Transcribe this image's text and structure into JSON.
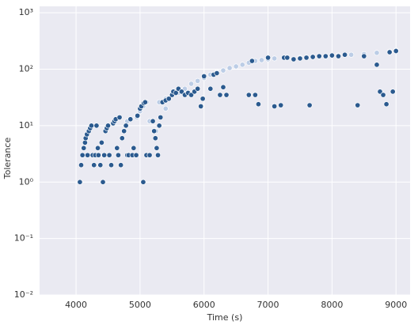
{
  "chart_data": {
    "type": "scatter",
    "x_label": "Time (s)",
    "y_label": "Tolerance",
    "log_y": true,
    "grid": true,
    "xlim": [
      3430,
      9220
    ],
    "ylim": [
      0.01,
      1300
    ],
    "xticks": [
      4000,
      5000,
      6000,
      7000,
      8000,
      9000
    ],
    "yticks": [
      {
        "value": 0.01,
        "label": "10⁻²"
      },
      {
        "value": 0.1,
        "label": "10⁻¹"
      },
      {
        "value": 1,
        "label": "10⁰"
      },
      {
        "value": 10,
        "label": "10¹"
      },
      {
        "value": 100,
        "label": "10²"
      },
      {
        "value": 1000,
        "label": "10³"
      }
    ],
    "series": [
      {
        "color": "#bccde6",
        "x": [
          4800,
          4950,
          5000,
          5050,
          5100,
          5150,
          5250,
          5300,
          5400,
          5400,
          5500,
          5600,
          5700,
          5800,
          5900,
          6000,
          6100,
          6200,
          6300,
          6400,
          6500,
          6600,
          6700,
          6800,
          6900,
          7000,
          7100,
          7300,
          7500,
          7700,
          7900,
          8100,
          8300,
          8500,
          8700,
          8900,
          9000
        ],
        "values": [
          12,
          14,
          18,
          22,
          26,
          12,
          8,
          26,
          20,
          30,
          35,
          38,
          45,
          55,
          62,
          70,
          80,
          88,
          95,
          105,
          112,
          120,
          130,
          140,
          145,
          150,
          155,
          160,
          160,
          165,
          170,
          175,
          180,
          185,
          195,
          205,
          215
        ]
      },
      {
        "color": "#2b5a8f",
        "x": [
          4060,
          4080,
          4100,
          4120,
          4140,
          4150,
          4170,
          4180,
          4200,
          4220,
          4240,
          4260,
          4280,
          4300,
          4320,
          4340,
          4350,
          4380,
          4400,
          4420,
          4440,
          4460,
          4480,
          4500,
          4520,
          4550,
          4580,
          4600,
          4620,
          4640,
          4660,
          4680,
          4700,
          4720,
          4750,
          4780,
          4800,
          4820,
          4850,
          4880,
          4900,
          4940,
          4960,
          5000,
          5020,
          5050,
          5060,
          5080,
          5100,
          5150,
          5200,
          5220,
          5240,
          5260,
          5280,
          5300,
          5320,
          5350,
          5400,
          5450,
          5500,
          5520,
          5560,
          5600,
          5650,
          5700,
          5750,
          5800,
          5850,
          5900,
          5950,
          5980,
          6000,
          6100,
          6150,
          6200,
          6250,
          6300,
          6350,
          6700,
          6750,
          6800,
          6850,
          7000,
          7100,
          7200,
          7250,
          7300,
          7400,
          7500,
          7600,
          7650,
          7700,
          7800,
          7900,
          8000,
          8100,
          8200,
          8400,
          8500,
          8700,
          8750,
          8800,
          8850,
          8900,
          8950,
          9000
        ],
        "values": [
          1,
          2,
          3,
          4,
          5,
          6,
          7,
          3,
          8,
          9,
          10,
          3,
          2,
          3,
          10,
          4,
          3,
          2,
          5,
          1,
          3,
          8,
          9,
          10,
          3,
          2,
          11,
          12,
          13,
          4,
          3,
          14,
          2,
          6,
          8,
          10,
          3,
          3,
          13,
          3,
          4,
          3,
          15,
          20,
          22,
          1,
          25,
          26,
          3,
          3,
          12,
          8,
          6,
          4,
          3,
          10,
          14,
          26,
          28,
          30,
          35,
          40,
          38,
          45,
          40,
          35,
          38,
          35,
          40,
          45,
          22,
          30,
          75,
          45,
          80,
          85,
          35,
          48,
          35,
          35,
          140,
          35,
          24,
          160,
          22,
          23,
          160,
          160,
          150,
          155,
          160,
          23,
          165,
          170,
          170,
          175,
          170,
          180,
          23,
          170,
          120,
          40,
          35,
          24,
          200,
          40,
          210
        ]
      }
    ]
  }
}
